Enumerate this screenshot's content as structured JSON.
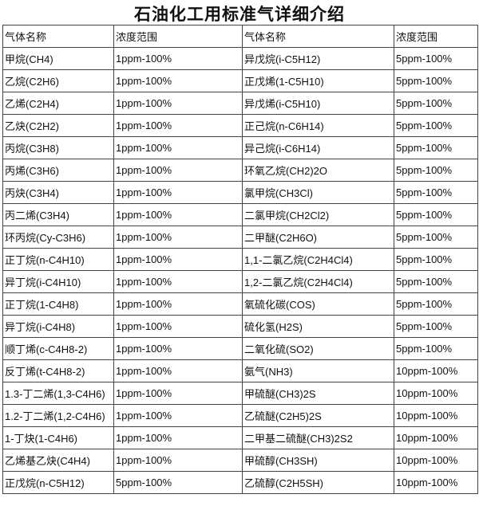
{
  "title": "石油化工用标准气详细介绍",
  "headers": [
    "气体名称",
    "浓度范围",
    "气体名称",
    "浓度范围"
  ],
  "rows": [
    [
      "甲烷(CH4)",
      "1ppm-100%",
      "异戊烷(i-C5H12)",
      "5ppm-100%"
    ],
    [
      "乙烷(C2H6)",
      "1ppm-100%",
      "正戊烯(1-C5H10)",
      "5ppm-100%"
    ],
    [
      "乙烯(C2H4)",
      "1ppm-100%",
      "异戊烯(i-C5H10)",
      "5ppm-100%"
    ],
    [
      "乙炔(C2H2)",
      "1ppm-100%",
      "正己烷(n-C6H14)",
      "5ppm-100%"
    ],
    [
      "丙烷(C3H8)",
      "1ppm-100%",
      "异己烷(i-C6H14)",
      "5ppm-100%"
    ],
    [
      "丙烯(C3H6)",
      "1ppm-100%",
      "环氧乙烷(CH2)2O",
      "5ppm-100%"
    ],
    [
      "丙炔(C3H4)",
      "1ppm-100%",
      "氯甲烷(CH3Cl)",
      "5ppm-100%"
    ],
    [
      "丙二烯(C3H4)",
      "1ppm-100%",
      "二氯甲烷(CH2Cl2)",
      "5ppm-100%"
    ],
    [
      "环丙烷(Cy-C3H6)",
      "1ppm-100%",
      "二甲醚(C2H6O)",
      "5ppm-100%"
    ],
    [
      "正丁烷(n-C4H10)",
      "1ppm-100%",
      "1,1-二氯乙烷(C2H4Cl4)",
      "5ppm-100%"
    ],
    [
      "异丁烷(i-C4H10)",
      "1ppm-100%",
      "1,2-二氯乙烷(C2H4Cl4)",
      "5ppm-100%"
    ],
    [
      "正丁烷(1-C4H8)",
      "1ppm-100%",
      "氧硫化碳(COS)",
      "5ppm-100%"
    ],
    [
      "异丁烷(i-C4H8)",
      "1ppm-100%",
      "硫化氢(H2S)",
      "5ppm-100%"
    ],
    [
      "顺丁烯(c-C4H8-2)",
      "1ppm-100%",
      "二氧化硫(SO2)",
      "5ppm-100%"
    ],
    [
      "反丁烯(t-C4H8-2)",
      "1ppm-100%",
      "氨气(NH3)",
      "10ppm-100%"
    ],
    [
      "1.3-丁二烯(1,3-C4H6)",
      "1ppm-100%",
      "甲硫醚(CH3)2S",
      "10ppm-100%"
    ],
    [
      "1.2-丁二烯(1,2-C4H6)",
      "1ppm-100%",
      "乙硫醚(C2H5)2S",
      "10ppm-100%"
    ],
    [
      "1-丁炔(1-C4H6)",
      "1ppm-100%",
      "二甲基二硫醚(CH3)2S2",
      "10ppm-100%"
    ],
    [
      "乙烯基乙炔(C4H4)",
      "1ppm-100%",
      "甲硫醇(CH3SH)",
      "10ppm-100%"
    ],
    [
      "正戊烷(n-C5H12)",
      "5ppm-100%",
      "乙硫醇(C2H5SH)",
      "10ppm-100%"
    ]
  ]
}
